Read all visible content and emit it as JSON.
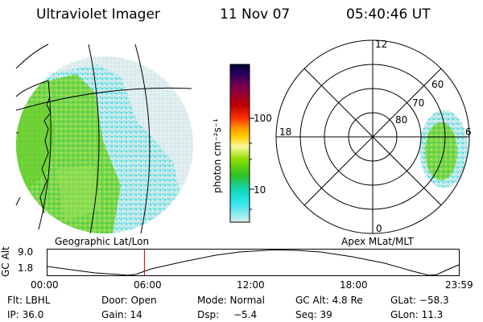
{
  "header": {
    "instrument": "Ultraviolet Imager",
    "date": "11 Nov 07",
    "time": "05:40:46 UT"
  },
  "panels": {
    "left_caption": "Geographic Lat/Lon",
    "right_caption": "Apex MLat/MLT"
  },
  "colorbar": {
    "unit": "photon cm⁻²s⁻¹",
    "ticks": [
      "100",
      "10"
    ],
    "scale": "log",
    "colors": [
      "#000033",
      "#2a0060",
      "#7a0050",
      "#c00000",
      "#ff3000",
      "#ff9000",
      "#ffd000",
      "#f8f8a0",
      "#90e000",
      "#30c020",
      "#10d8c0",
      "#30e8f0",
      "#d8ecec"
    ]
  },
  "polar_plot": {
    "mlt_labels": [
      "12",
      "18",
      "6",
      "0"
    ],
    "lat_labels": [
      "60",
      "70",
      "80"
    ]
  },
  "altitude_plot": {
    "ylabel": "GC Alt",
    "yticks": [
      "9.0",
      "1.8"
    ],
    "xticks": [
      "00:00",
      "06:00",
      "12:00",
      "18:00",
      "23:59"
    ],
    "marker_time": "05:40"
  },
  "status": {
    "filter": "Flt: LBHL",
    "door": "Door: Open",
    "mode": "Mode: Normal",
    "gc_alt": "GC Alt: 4.8 Re",
    "glat": "GLat: −58.3",
    "ip": "IP: 36.0",
    "gain": "Gain: 14",
    "dsp_label": "Dsp:",
    "dsp_value": "−5.4",
    "seq": "Seq: 39",
    "glon": "GLon: 11.3"
  }
}
